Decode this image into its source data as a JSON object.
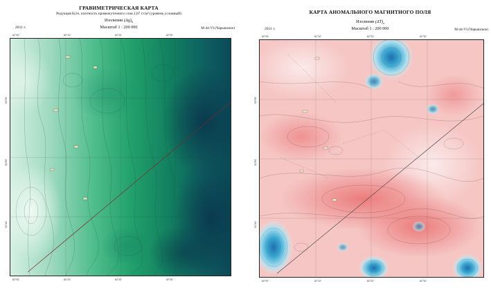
{
  "gravity_map": {
    "title": "ГРАВИМЕТРИЧЕСКАЯ КАРТА",
    "subtitle": "Редукция Буге, плотность промежуточного слоя 2,67 г/см³ (уровень условный)",
    "isolines_word": "Изолинии",
    "isolines_symbol": "(Δg)",
    "isolines_sub": "Б",
    "scale_label": "Масштаб 1 : 200 000",
    "year": "2011 г.",
    "sheet_id": "M-44-VI (Чарышское)",
    "top_ticks": [
      "82°00'",
      "82°10'",
      "82°20'",
      "82°30'"
    ],
    "bottom_ticks": [
      "82°00'",
      "82°10'",
      "82°20'",
      "82°30'"
    ],
    "side_ticks": [
      "52°00'",
      "51°50'",
      "51°40'"
    ],
    "colors": {
      "light": "#d6f0e2",
      "mid": "#2fa67a",
      "deep": "#0b4f60",
      "darkest": "#0a3a4e"
    }
  },
  "magnetic_map": {
    "title": "КАРТА АНОМАЛЬНОГО МАГНИТНОГО ПОЛЯ",
    "isolines_word": "Изолинии",
    "isolines_symbol": "(ΔT)",
    "isolines_sub": "a",
    "scale_label": "Масштаб 1 : 200 000",
    "year": "2011 г.",
    "sheet_id": "M-44-VI (Чарышское)",
    "top_ticks": [
      "82°00'",
      "82°10'",
      "82°20'",
      "82°30'"
    ],
    "bottom_ticks": [
      "82°00'",
      "82°10'",
      "82°20'",
      "82°30'"
    ],
    "side_ticks": [
      "52°00'",
      "51°50'",
      "51°40'"
    ],
    "colors": {
      "base": "#f4c2c2",
      "strong": "#ee8d8d",
      "negative": "#2b8fc2",
      "light_neg": "#aee0ee"
    }
  }
}
